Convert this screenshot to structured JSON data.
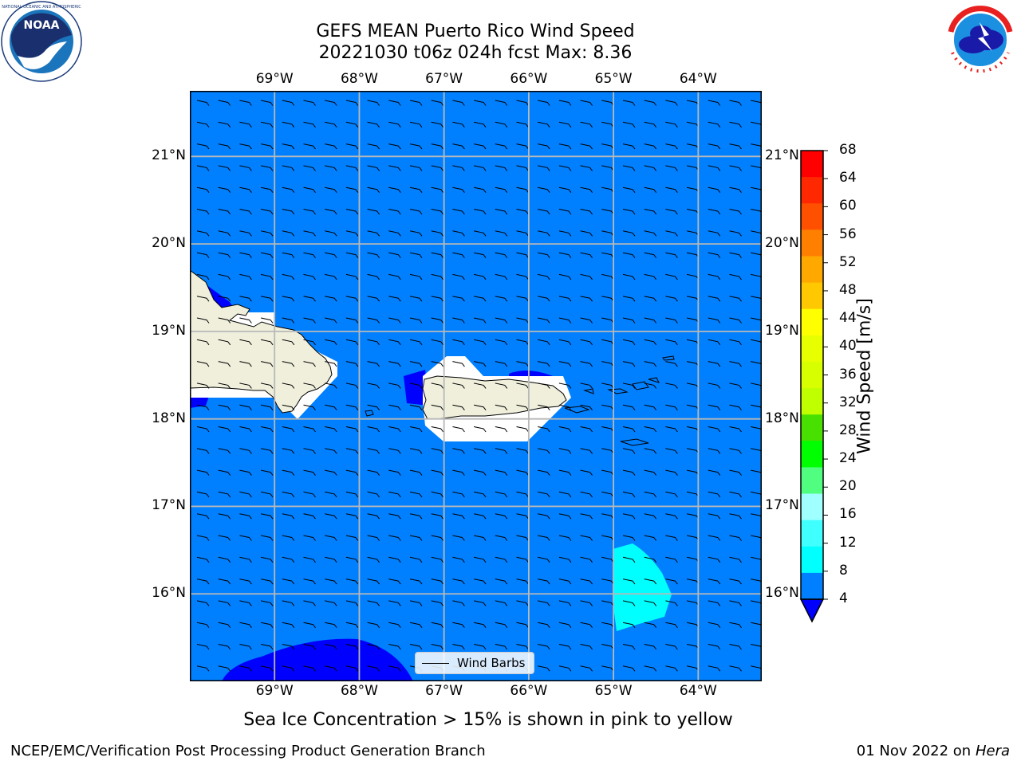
{
  "title": {
    "line1": "GEFS MEAN Puerto Rico Wind Speed",
    "line2": "20221030 t06z 024h fcst   Max: 8.36"
  },
  "logos": {
    "left": "noaa-logo",
    "right": "national-weather-service-logo"
  },
  "map": {
    "lon_labels": [
      "69°W",
      "68°W",
      "67°W",
      "66°W",
      "65°W",
      "64°W"
    ],
    "lat_labels": [
      "21°N",
      "20°N",
      "19°N",
      "18°N",
      "17°N",
      "16°N"
    ],
    "lon_values": [
      -69,
      -68,
      -67,
      -66,
      -65,
      -64
    ],
    "lat_values": [
      21,
      20,
      19,
      18,
      17,
      16
    ],
    "lon_range": [
      -70,
      -63.25
    ],
    "lat_range": [
      15,
      21.75
    ],
    "ocean_color": "#0080ff",
    "land_color": "#efefdc",
    "calm_color": "#0000ff",
    "legend_label": "Wind Barbs"
  },
  "colorbar": {
    "label": "Wind Speed [m/s]",
    "ticks": [
      "68",
      "64",
      "60",
      "56",
      "52",
      "48",
      "44",
      "40",
      "36",
      "32",
      "28",
      "24",
      "20",
      "16",
      "12",
      "8",
      "4"
    ],
    "colors": [
      "#ff0000",
      "#ff2800",
      "#ff5000",
      "#ff8000",
      "#ffa800",
      "#ffc800",
      "#ffff00",
      "#e8ff00",
      "#d8ff00",
      "#c0ff00",
      "#48e000",
      "#00ff00",
      "#50ff80",
      "#a0ffff",
      "#40ffff",
      "#00ffff",
      "#0080ff"
    ],
    "under_color": "#0000ff"
  },
  "caption": "Sea Ice Concentration > 15% is shown in pink to yellow",
  "footer": {
    "left": "NCEP/EMC/Verification Post Processing Product Generation Branch",
    "date": "01 Nov 2022 on",
    "machine": "Hera"
  }
}
